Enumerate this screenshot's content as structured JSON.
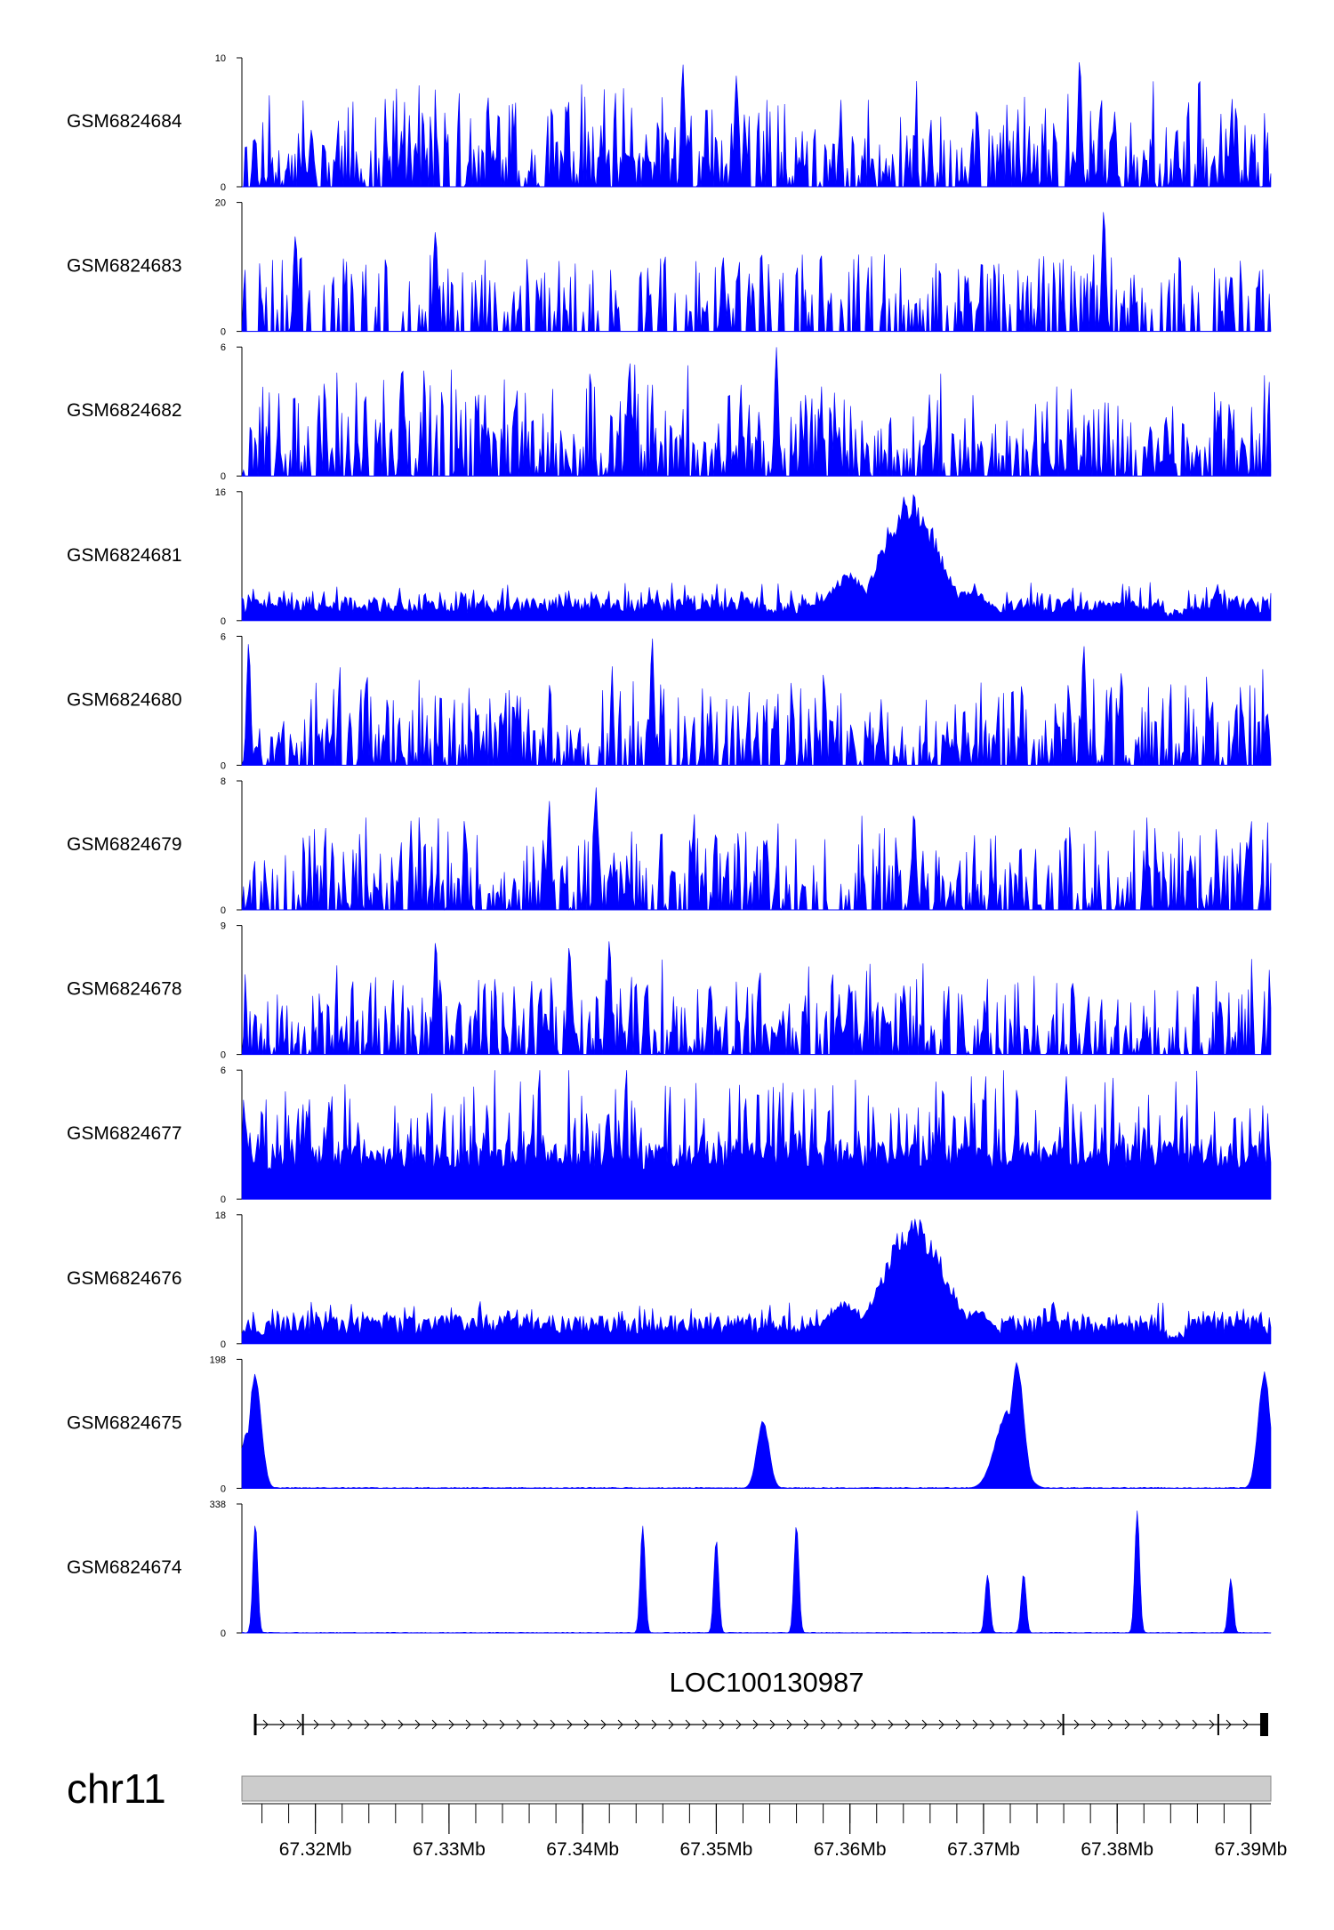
{
  "chart_data": {
    "type": "area",
    "genome_region": {
      "chromosome": "chr11",
      "x_range_mb": [
        67.3145,
        67.3915
      ],
      "ticks": [
        "67.32Mb",
        "67.33Mb",
        "67.34Mb",
        "67.35Mb",
        "67.36Mb",
        "67.37Mb",
        "67.38Mb",
        "67.39Mb"
      ],
      "tick_values_mb": [
        67.32,
        67.33,
        67.34,
        67.35,
        67.36,
        67.37,
        67.38,
        67.39
      ]
    },
    "series": [
      {
        "name": "GSM6824684",
        "ymax": 10,
        "ymin": 0,
        "profile": "noise",
        "seed": 11,
        "base": 0.25,
        "spike": 0.6,
        "peaks": [
          [
            67.3475,
            10,
            0.00015
          ],
          [
            67.3515,
            9,
            0.00015
          ],
          [
            67.3772,
            10,
            0.00015
          ]
        ]
      },
      {
        "name": "GSM6824683",
        "ymax": 20,
        "ymin": 0,
        "profile": "sparse",
        "seed": 23,
        "base": 0.15,
        "spike": 0.45,
        "peaks": [
          [
            67.3185,
            16,
            0.00015
          ],
          [
            67.329,
            16,
            0.00015
          ],
          [
            67.379,
            20,
            0.00015
          ],
          [
            67.3505,
            12,
            0.00015
          ]
        ]
      },
      {
        "name": "GSM6824682",
        "ymax": 6,
        "ymin": 0,
        "profile": "noise",
        "seed": 37,
        "base": 0.3,
        "spike": 0.6,
        "peaks": [
          [
            67.3265,
            5.5,
            0.00015
          ],
          [
            67.3435,
            5.5,
            0.00015
          ],
          [
            67.3545,
            6,
            0.00015
          ]
        ]
      },
      {
        "name": "GSM6824681",
        "ymax": 16,
        "ymin": 0,
        "profile": "broad",
        "seed": 41,
        "base": 0.18,
        "spike": 0.12,
        "peaks": [
          [
            67.3645,
            16,
            0.0021
          ],
          [
            67.36,
            6,
            0.0015
          ],
          [
            67.369,
            4,
            0.0015
          ]
        ]
      },
      {
        "name": "GSM6824680",
        "ymax": 6,
        "ymin": 0,
        "profile": "noise",
        "seed": 53,
        "base": 0.25,
        "spike": 0.55,
        "peaks": [
          [
            67.315,
            6,
            0.00015
          ],
          [
            67.3452,
            6,
            0.00015
          ],
          [
            67.3775,
            6,
            0.00015
          ]
        ]
      },
      {
        "name": "GSM6824679",
        "ymax": 8,
        "ymin": 0,
        "profile": "noise",
        "seed": 67,
        "base": 0.25,
        "spike": 0.55,
        "peaks": [
          [
            67.341,
            8,
            0.00015
          ],
          [
            67.3375,
            7,
            0.00015
          ],
          [
            67.3648,
            6.5,
            0.00015
          ]
        ]
      },
      {
        "name": "GSM6824678",
        "ymax": 9,
        "ymin": 0,
        "profile": "noise",
        "seed": 71,
        "base": 0.25,
        "spike": 0.5,
        "peaks": [
          [
            67.329,
            8.5,
            0.00015
          ],
          [
            67.342,
            8.5,
            0.00015
          ],
          [
            67.339,
            8,
            0.00015
          ]
        ]
      },
      {
        "name": "GSM6824677",
        "ymax": 6,
        "ymin": 0,
        "profile": "dense",
        "seed": 83,
        "base": 0.45,
        "spike": 0.6,
        "peaks": [
          [
            67.3762,
            6,
            0.00015
          ],
          [
            67.3725,
            5.5,
            0.00015
          ]
        ]
      },
      {
        "name": "GSM6824676",
        "ymax": 18,
        "ymin": 0,
        "profile": "broad",
        "seed": 97,
        "base": 0.22,
        "spike": 0.12,
        "peaks": [
          [
            67.3648,
            18,
            0.0023
          ],
          [
            67.3595,
            6,
            0.0015
          ],
          [
            67.3695,
            5,
            0.0012
          ]
        ]
      },
      {
        "name": "GSM6824675",
        "ymax": 198,
        "ymin": 0,
        "profile": "peaks",
        "seed": 101,
        "base": 0.008,
        "spike": 0.01,
        "peaks": [
          [
            67.3155,
            180,
            0.00045
          ],
          [
            67.315,
            90,
            0.0006
          ],
          [
            67.3535,
            105,
            0.00045
          ],
          [
            67.3725,
            198,
            0.0005
          ],
          [
            67.3718,
            120,
            0.0009
          ],
          [
            67.391,
            180,
            0.00045
          ]
        ]
      },
      {
        "name": "GSM6824674",
        "ymax": 338,
        "ymin": 0,
        "profile": "peaks",
        "seed": 113,
        "base": 0.005,
        "spike": 0.005,
        "peaks": [
          [
            67.3155,
            300,
            0.00018
          ],
          [
            67.3445,
            300,
            0.00018
          ],
          [
            67.35,
            260,
            0.00018
          ],
          [
            67.356,
            300,
            0.00018
          ],
          [
            67.3703,
            160,
            0.00018
          ],
          [
            67.373,
            165,
            0.00018
          ],
          [
            67.3815,
            338,
            0.00018
          ],
          [
            67.3885,
            150,
            0.00018
          ]
        ]
      }
    ],
    "gene": {
      "name": "LOC100130987",
      "start_mb": 67.3155,
      "end_mb": 67.3913,
      "strand": "+",
      "exons_mb": [
        [
          67.3154,
          67.3156
        ],
        [
          67.319,
          67.31905
        ],
        [
          67.3759,
          67.37595
        ],
        [
          67.3875,
          67.38755
        ],
        [
          67.3907,
          67.3913
        ]
      ]
    }
  },
  "colors": {
    "signal": "#0000ff",
    "axis": "#000000",
    "ideogram": "#cccccc",
    "ideogram_border": "#888888"
  }
}
